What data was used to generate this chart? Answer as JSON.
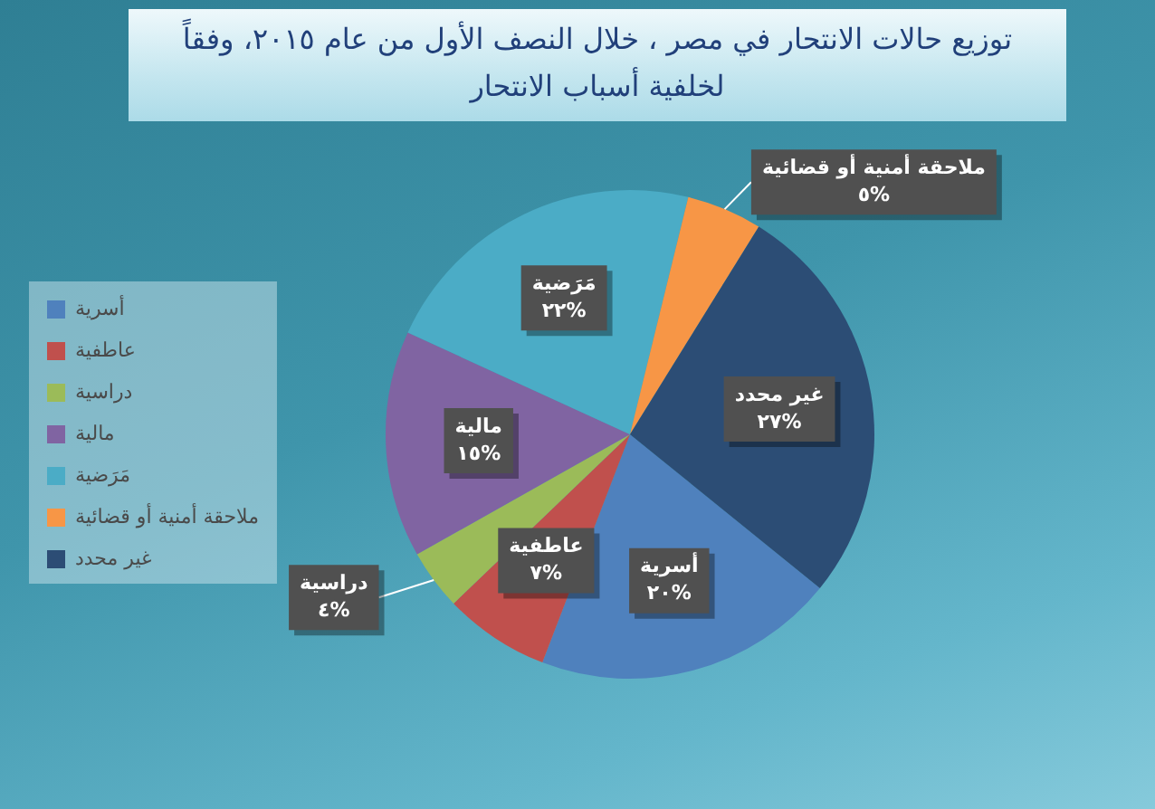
{
  "chart_data": {
    "type": "pie",
    "title": "توزيع حالات الانتحار في مصر ، خلال النصف الأول من عام ٢٠١٥، وفقاً لخلفية أسباب الانتحار",
    "categories": [
      "أسرية",
      "عاطفية",
      "دراسية",
      "مالية",
      "مَرَضية",
      "ملاحقة أمنية أو قضائية",
      "غير محدد"
    ],
    "values": [
      20,
      7,
      4,
      15,
      22,
      5,
      27
    ],
    "colors": [
      "#4f81bd",
      "#c0504d",
      "#9bbb59",
      "#8064a2",
      "#4bacc6",
      "#f79646",
      "#2c4d75"
    ],
    "value_labels": [
      "٢٠%",
      "٧%",
      "٤%",
      "١٥%",
      "٢٢%",
      "٥%",
      "٢٧%"
    ],
    "legend": "left"
  }
}
